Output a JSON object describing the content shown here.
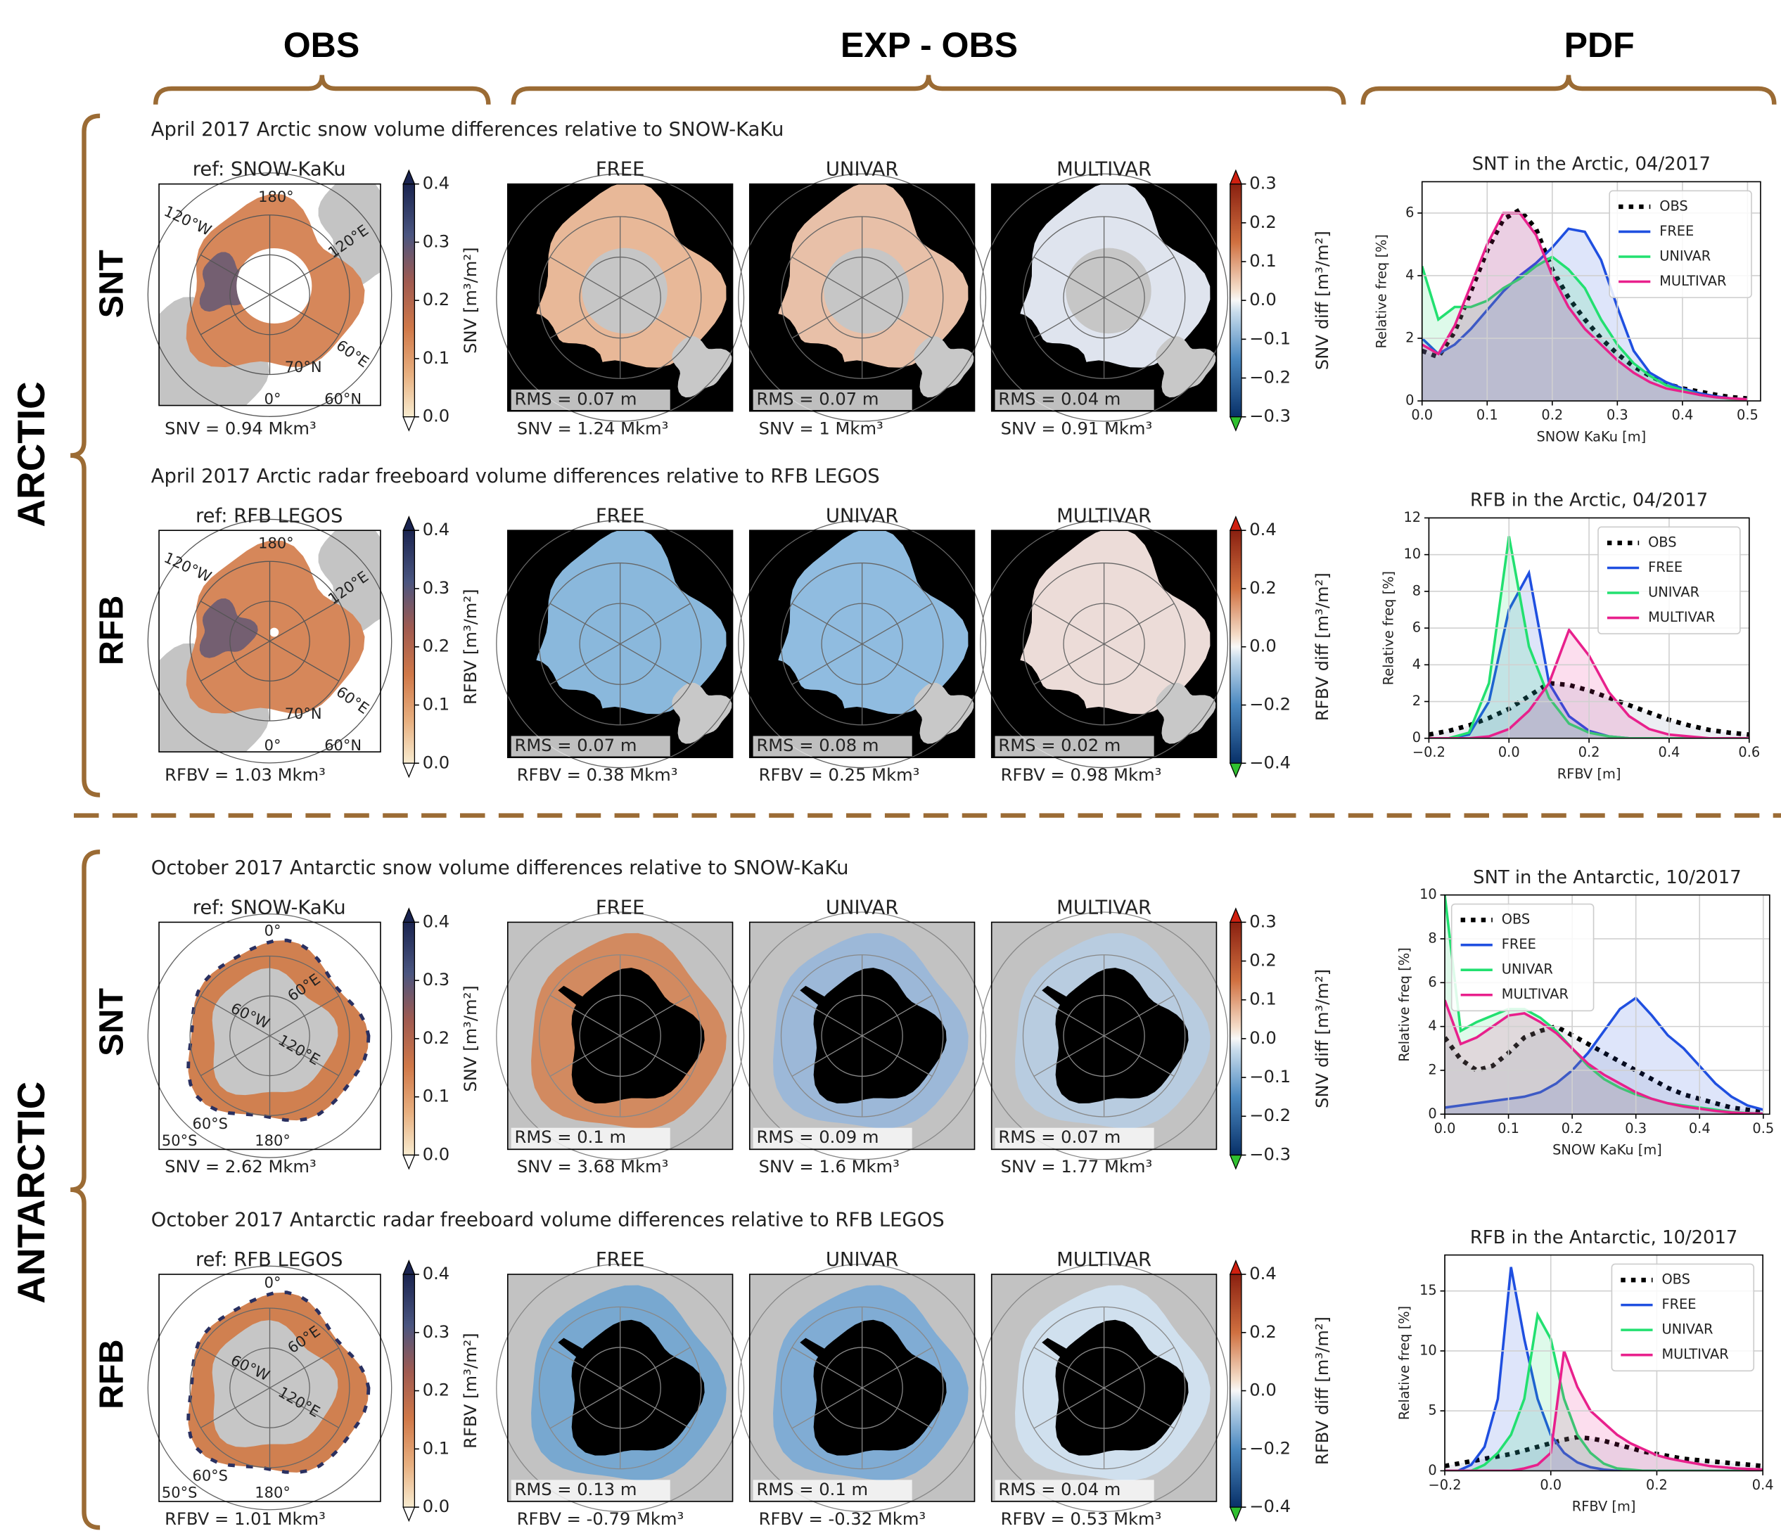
{
  "headers": {
    "obs": "OBS",
    "exp_obs": "EXP - OBS",
    "pdf": "PDF"
  },
  "regions": [
    {
      "label": "ARCTIC",
      "map_labels": [
        "180°",
        "120°W",
        "120°E",
        "60°E",
        "70°N",
        "0°",
        "60°N"
      ],
      "rows": [
        {
          "label": "SNT",
          "title": "April 2017 Arctic snow volume differences relative to SNOW-KaKu",
          "obs": {
            "title": "ref: SNOW-KaKu",
            "volume": "SNV = 0.94 Mkm³",
            "colorbar": {
              "label": "SNV [m³/m²]",
              "lim": [
                0,
                0.4
              ],
              "ticks": [
                {
                  "value": 0,
                  "label": "0.0"
                },
                0.1,
                0.2,
                0.3,
                0.4
              ]
            }
          },
          "experiments": [
            {
              "title": "FREE",
              "rms": "RMS = 0.07 m",
              "volume": "SNV = 1.24 Mkm³"
            },
            {
              "title": "UNIVAR",
              "rms": "RMS = 0.07 m",
              "volume": "SNV = 1 Mkm³"
            },
            {
              "title": "MULTIVAR",
              "rms": "RMS = 0.04 m",
              "volume": "SNV = 0.91 Mkm³"
            }
          ],
          "diff_colorbar": {
            "label": "SNV diff [m³/m²]",
            "lim": [
              -0.3,
              0.3
            ],
            "ticks": [
              {
                "value": -0.3,
                "label": "−0.3"
              },
              {
                "value": -0.2,
                "label": "−0.2"
              },
              {
                "value": -0.1,
                "label": "−0.1"
              },
              {
                "value": 0,
                "label": "0.0"
              },
              0.1,
              0.2,
              0.3
            ]
          }
        },
        {
          "label": "RFB",
          "title": "April 2017 Arctic radar freeboard volume differences relative to RFB LEGOS",
          "obs": {
            "title": "ref: RFB LEGOS",
            "volume": "RFBV = 1.03 Mkm³",
            "colorbar": {
              "label": "RFBV [m³/m²]",
              "lim": [
                0,
                0.4
              ],
              "ticks": [
                {
                  "value": 0,
                  "label": "0.0"
                },
                0.1,
                0.2,
                0.3,
                0.4
              ]
            }
          },
          "experiments": [
            {
              "title": "FREE",
              "rms": "RMS = 0.07 m",
              "volume": "RFBV = 0.38 Mkm³"
            },
            {
              "title": "UNIVAR",
              "rms": "RMS = 0.08 m",
              "volume": "RFBV = 0.25 Mkm³"
            },
            {
              "title": "MULTIVAR",
              "rms": "RMS = 0.02 m",
              "volume": "RFBV = 0.98 Mkm³"
            }
          ],
          "diff_colorbar": {
            "label": "RFBV diff [m³/m²]",
            "lim": [
              -0.4,
              0.4
            ],
            "ticks": [
              {
                "value": -0.4,
                "label": "−0.4"
              },
              {
                "value": -0.2,
                "label": "−0.2"
              },
              {
                "value": 0,
                "label": "0.0"
              },
              0.2,
              0.4
            ]
          }
        }
      ]
    },
    {
      "label": "ANTARCTIC",
      "map_labels": [
        "0°",
        "60°W",
        "60°E",
        "120°E",
        "60°S",
        "50°S",
        "180°"
      ],
      "rows": [
        {
          "label": "SNT",
          "title": "October 2017 Antarctic snow volume differences relative to SNOW-KaKu",
          "obs": {
            "title": "ref: SNOW-KaKu",
            "volume": "SNV = 2.62 Mkm³",
            "colorbar": {
              "label": "SNV [m³/m²]",
              "lim": [
                0,
                0.4
              ],
              "ticks": [
                {
                  "value": 0,
                  "label": "0.0"
                },
                0.1,
                0.2,
                0.3,
                0.4
              ]
            }
          },
          "experiments": [
            {
              "title": "FREE",
              "rms": "RMS = 0.1 m",
              "volume": "SNV = 3.68 Mkm³"
            },
            {
              "title": "UNIVAR",
              "rms": "RMS = 0.09 m",
              "volume": "SNV = 1.6 Mkm³"
            },
            {
              "title": "MULTIVAR",
              "rms": "RMS = 0.07 m",
              "volume": "SNV = 1.77 Mkm³"
            }
          ],
          "diff_colorbar": {
            "label": "SNV diff [m³/m²]",
            "lim": [
              -0.3,
              0.3
            ],
            "ticks": [
              {
                "value": -0.3,
                "label": "−0.3"
              },
              {
                "value": -0.2,
                "label": "−0.2"
              },
              {
                "value": -0.1,
                "label": "−0.1"
              },
              {
                "value": 0,
                "label": "0.0"
              },
              0.1,
              0.2,
              0.3
            ]
          }
        },
        {
          "label": "RFB",
          "title": "October 2017 Antarctic radar freeboard volume differences relative to RFB LEGOS",
          "obs": {
            "title": "ref: RFB LEGOS",
            "volume": "RFBV = 1.01 Mkm³",
            "colorbar": {
              "label": "RFBV [m³/m²]",
              "lim": [
                0,
                0.4
              ],
              "ticks": [
                {
                  "value": 0,
                  "label": "0.0"
                },
                0.1,
                0.2,
                0.3,
                0.4
              ]
            }
          },
          "experiments": [
            {
              "title": "FREE",
              "rms": "RMS = 0.13 m",
              "volume": "RFBV = -0.79 Mkm³"
            },
            {
              "title": "UNIVAR",
              "rms": "RMS = 0.1 m",
              "volume": "RFBV = -0.32 Mkm³"
            },
            {
              "title": "MULTIVAR",
              "rms": "RMS = 0.04 m",
              "volume": "RFBV = 0.53 Mkm³"
            }
          ],
          "diff_colorbar": {
            "label": "RFBV diff [m³/m²]",
            "lim": [
              -0.4,
              0.4
            ],
            "ticks": [
              {
                "value": -0.4,
                "label": "−0.4"
              },
              {
                "value": -0.2,
                "label": "−0.2"
              },
              {
                "value": 0,
                "label": "0.0"
              },
              0.2,
              0.4
            ]
          }
        }
      ]
    }
  ],
  "chart_data": [
    {
      "type": "line",
      "title": "SNT in the Arctic, 04/2017",
      "xlabel": "SNOW KaKu [m]",
      "ylabel": "Relative freq [%]",
      "grid": true,
      "legend": "upper right",
      "x": [
        0,
        0.025,
        0.05,
        0.075,
        0.1,
        0.125,
        0.15,
        0.175,
        0.2,
        0.225,
        0.25,
        0.275,
        0.3,
        0.325,
        0.35,
        0.375,
        0.4,
        0.425,
        0.45,
        0.475,
        0.5
      ],
      "xlim": [
        0,
        0.52
      ],
      "xticks": [
        {
          "value": 0,
          "label": "0.0"
        },
        0.1,
        0.2,
        0.3,
        0.4,
        0.5
      ],
      "ylim": [
        0,
        7
      ],
      "yticks": [
        0,
        2,
        4,
        6
      ],
      "series": [
        {
          "name": "OBS",
          "color": "#000000",
          "linestyle": "dotted",
          "values": [
            1.6,
            1.4,
            2.2,
            3.5,
            4.8,
            5.8,
            6.1,
            5.5,
            4.2,
            3.3,
            2.6,
            2.0,
            1.5,
            1.1,
            0.8,
            0.55,
            0.4,
            0.3,
            0.2,
            0.12,
            0.08
          ]
        },
        {
          "name": "FREE",
          "color": "#1f4fe0",
          "linestyle": "solid",
          "values": [
            2.0,
            1.5,
            1.8,
            2.3,
            2.9,
            3.5,
            4.0,
            4.4,
            4.9,
            5.5,
            5.4,
            4.5,
            3.0,
            1.6,
            0.9,
            0.6,
            0.4,
            0.25,
            0.15,
            0.08,
            0.05
          ]
        },
        {
          "name": "UNIVAR",
          "color": "#22e070",
          "linestyle": "solid",
          "values": [
            4.3,
            2.6,
            3.0,
            3.0,
            3.2,
            3.6,
            3.9,
            4.3,
            4.6,
            4.2,
            3.6,
            2.6,
            1.8,
            1.2,
            0.8,
            0.5,
            0.35,
            0.2,
            0.12,
            0.06,
            0.03
          ]
        },
        {
          "name": "MULTIVAR",
          "color": "#e8208c",
          "linestyle": "solid",
          "values": [
            1.8,
            1.5,
            2.4,
            3.7,
            5.0,
            6.0,
            6.0,
            5.3,
            4.0,
            3.0,
            2.3,
            1.8,
            1.3,
            0.9,
            0.6,
            0.4,
            0.3,
            0.2,
            0.12,
            0.08,
            0.05
          ]
        }
      ]
    },
    {
      "type": "line",
      "title": "RFB in the Arctic, 04/2017",
      "xlabel": "RFBV [m]",
      "ylabel": "Relative freq [%]",
      "grid": true,
      "legend": "upper right",
      "x": [
        -0.2,
        -0.15,
        -0.1,
        -0.05,
        0,
        0.05,
        0.1,
        0.15,
        0.2,
        0.25,
        0.3,
        0.35,
        0.4,
        0.45,
        0.5,
        0.55,
        0.6
      ],
      "xlim": [
        -0.2,
        0.6
      ],
      "xticks": [
        {
          "value": -0.2,
          "label": "−0.2"
        },
        {
          "value": 0,
          "label": "0.0"
        },
        0.2,
        0.4,
        0.6
      ],
      "ylim": [
        0,
        12
      ],
      "yticks": [
        0,
        2,
        4,
        6,
        8,
        10,
        12
      ],
      "series": [
        {
          "name": "OBS",
          "color": "#000000",
          "linestyle": "dotted",
          "values": [
            0.2,
            0.4,
            0.7,
            1.1,
            1.6,
            2.3,
            3.0,
            2.9,
            2.6,
            2.2,
            1.8,
            1.4,
            1.0,
            0.7,
            0.45,
            0.3,
            0.2
          ]
        },
        {
          "name": "FREE",
          "color": "#1f4fe0",
          "linestyle": "solid",
          "values": [
            0,
            0,
            0.2,
            2,
            7,
            9,
            3,
            1.2,
            0.4,
            0.1,
            0,
            0,
            0,
            0,
            0,
            0,
            0
          ]
        },
        {
          "name": "UNIVAR",
          "color": "#22e070",
          "linestyle": "solid",
          "values": [
            0,
            0,
            0.3,
            3,
            11,
            5,
            2.2,
            0.8,
            0.3,
            0.1,
            0,
            0,
            0,
            0,
            0,
            0,
            0
          ]
        },
        {
          "name": "MULTIVAR",
          "color": "#e8208c",
          "linestyle": "solid",
          "values": [
            0,
            0,
            0,
            0.1,
            0.5,
            1.5,
            3,
            5.9,
            4.5,
            2.5,
            1.2,
            0.5,
            0.2,
            0.1,
            0,
            0,
            0
          ]
        }
      ]
    },
    {
      "type": "line",
      "title": "SNT in the Antarctic, 10/2017",
      "xlabel": "SNOW KaKu [m]",
      "ylabel": "Relative freq [%]",
      "grid": true,
      "legend": "upper left",
      "x": [
        0,
        0.025,
        0.05,
        0.075,
        0.1,
        0.125,
        0.15,
        0.175,
        0.2,
        0.225,
        0.25,
        0.275,
        0.3,
        0.325,
        0.35,
        0.375,
        0.4,
        0.425,
        0.45,
        0.475,
        0.5
      ],
      "xlim": [
        0,
        0.51
      ],
      "xticks": [
        {
          "value": 0,
          "label": "0.0"
        },
        0.1,
        0.2,
        0.3,
        0.4,
        0.5
      ],
      "ylim": [
        0,
        10
      ],
      "yticks": [
        0,
        2,
        4,
        6,
        8,
        10
      ],
      "series": [
        {
          "name": "OBS",
          "color": "#000000",
          "linestyle": "dotted",
          "values": [
            3.5,
            2.5,
            2.0,
            2.2,
            2.8,
            3.5,
            3.8,
            4.0,
            3.6,
            3.2,
            2.8,
            2.4,
            2.0,
            1.6,
            1.2,
            0.9,
            0.7,
            0.5,
            0.3,
            0.2,
            0.1
          ]
        },
        {
          "name": "FREE",
          "color": "#1f4fe0",
          "linestyle": "solid",
          "values": [
            0.3,
            0.4,
            0.5,
            0.6,
            0.7,
            0.8,
            1.0,
            1.4,
            2.0,
            2.8,
            3.8,
            4.8,
            5.3,
            4.5,
            3.6,
            3.0,
            2.2,
            1.4,
            0.8,
            0.4,
            0.2
          ]
        },
        {
          "name": "UNIVAR",
          "color": "#22e070",
          "linestyle": "solid",
          "values": [
            10,
            3.8,
            4.2,
            4.5,
            4.8,
            4.8,
            4.4,
            3.8,
            3.0,
            2.2,
            1.6,
            1.2,
            0.9,
            0.7,
            0.5,
            0.4,
            0.3,
            0.2,
            0.1,
            0.05,
            0.02
          ]
        },
        {
          "name": "MULTIVAR",
          "color": "#e8208c",
          "linestyle": "solid",
          "values": [
            5.2,
            3.2,
            3.5,
            4.0,
            4.5,
            4.6,
            4.2,
            3.7,
            3.0,
            2.3,
            1.8,
            1.4,
            1.0,
            0.7,
            0.5,
            0.35,
            0.25,
            0.15,
            0.08,
            0.04,
            0.02
          ]
        }
      ]
    },
    {
      "type": "line",
      "title": "RFB in the Antarctic, 10/2017",
      "xlabel": "RFBV [m]",
      "ylabel": "Relative freq [%]",
      "grid": true,
      "legend": "upper right",
      "x": [
        -0.2,
        -0.175,
        -0.15,
        -0.125,
        -0.1,
        -0.075,
        -0.05,
        -0.025,
        0,
        0.025,
        0.05,
        0.075,
        0.1,
        0.125,
        0.15,
        0.175,
        0.2,
        0.225,
        0.25,
        0.275,
        0.3,
        0.325,
        0.35,
        0.375,
        0.4
      ],
      "xlim": [
        -0.2,
        0.4
      ],
      "xticks": [
        {
          "value": -0.2,
          "label": "−0.2"
        },
        {
          "value": 0,
          "label": "0.0"
        },
        0.2,
        0.4
      ],
      "ylim": [
        0,
        18
      ],
      "yticks": [
        0,
        5,
        10,
        15
      ],
      "series": [
        {
          "name": "OBS",
          "color": "#000000",
          "linestyle": "dotted",
          "values": [
            0.4,
            0.6,
            0.8,
            1.0,
            1.2,
            1.4,
            1.7,
            2.0,
            2.3,
            2.6,
            2.8,
            2.7,
            2.5,
            2.2,
            1.9,
            1.6,
            1.4,
            1.2,
            1.0,
            0.9,
            0.8,
            0.7,
            0.6,
            0.5,
            0.4
          ]
        },
        {
          "name": "FREE",
          "color": "#1f4fe0",
          "linestyle": "solid",
          "values": [
            0,
            0,
            0.5,
            2,
            6,
            17,
            11,
            6,
            3,
            1.5,
            0.7,
            0.3,
            0.1,
            0,
            0,
            0,
            0,
            0,
            0,
            0,
            0,
            0,
            0,
            0,
            0
          ]
        },
        {
          "name": "UNIVAR",
          "color": "#22e070",
          "linestyle": "solid",
          "values": [
            0,
            0,
            0,
            0.5,
            1.5,
            3,
            6,
            13,
            11,
            6,
            3,
            1.5,
            0.6,
            0.2,
            0.1,
            0,
            0,
            0,
            0,
            0,
            0,
            0,
            0,
            0,
            0
          ]
        },
        {
          "name": "MULTIVAR",
          "color": "#e8208c",
          "linestyle": "solid",
          "values": [
            0,
            0,
            0,
            0,
            0,
            0,
            0.2,
            0.5,
            1.5,
            10,
            7,
            5,
            4,
            3,
            2.3,
            1.8,
            1.3,
            1,
            0.8,
            0.6,
            0.4,
            0.3,
            0.2,
            0.15,
            0.1
          ]
        }
      ]
    }
  ]
}
